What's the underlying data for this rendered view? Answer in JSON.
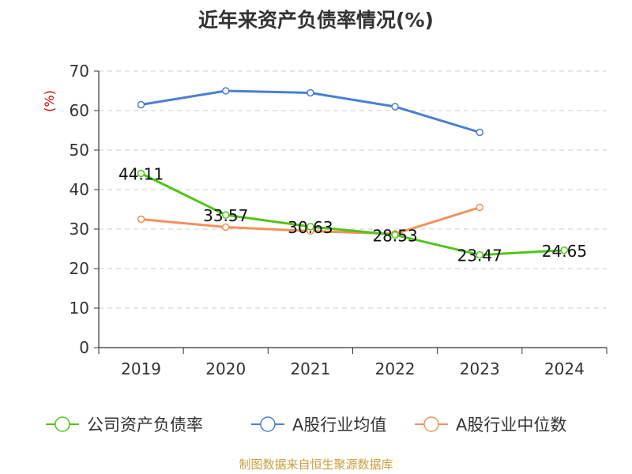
{
  "title": "近年来资产负债率情况(%)",
  "footer": "制图数据来自恒生聚源数据库",
  "chart_data": {
    "type": "line",
    "title": "近年来资产负债率情况(%)",
    "ylabel": "(%)",
    "xlabel": "",
    "categories": [
      "2019",
      "2020",
      "2021",
      "2022",
      "2023",
      "2024"
    ],
    "ylim": [
      0,
      70
    ],
    "yticks": [
      0,
      10,
      20,
      30,
      40,
      50,
      60,
      70
    ],
    "grid": true,
    "legend_position": "bottom",
    "series": [
      {
        "name": "公司资产负债率",
        "color": "#52c41a",
        "values": [
          44.11,
          33.57,
          30.63,
          28.53,
          23.47,
          24.65
        ],
        "labels": [
          "44.11",
          "33.57",
          "30.63",
          "28.53",
          "23.47",
          "24.65"
        ]
      },
      {
        "name": "A股行业均值",
        "color": "#4a7fd4",
        "values": [
          61.5,
          65.0,
          64.5,
          61.0,
          54.5,
          null
        ]
      },
      {
        "name": "A股行业中位数",
        "color": "#f4905a",
        "values": [
          32.5,
          30.5,
          29.5,
          28.8,
          35.5,
          null
        ]
      }
    ]
  }
}
